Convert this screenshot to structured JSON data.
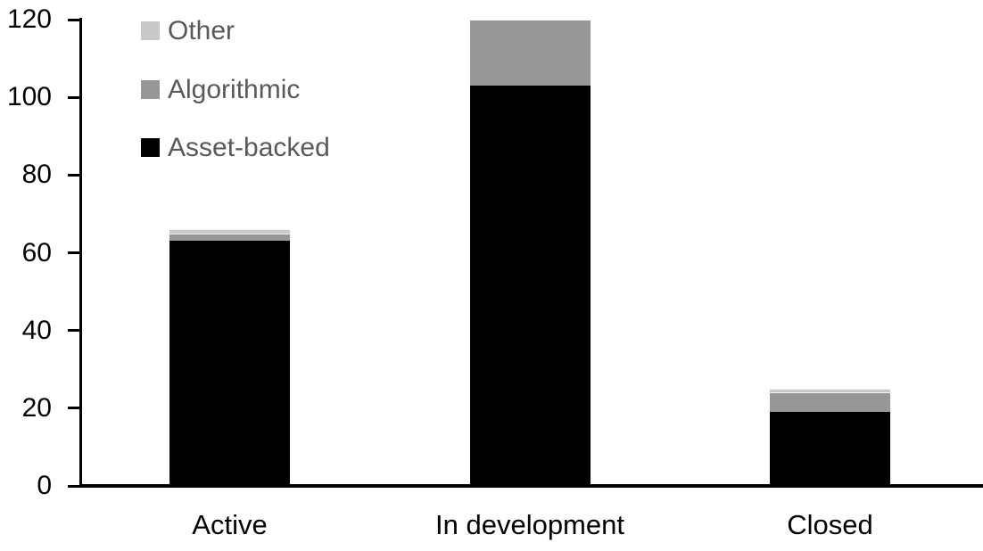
{
  "figure": {
    "kind": "static stacked bar chart",
    "background": "#ffffff"
  },
  "chart_data": {
    "type": "bar",
    "stacked": true,
    "title": "",
    "xlabel": "",
    "ylabel": "",
    "categories": [
      "Active",
      "In development",
      "Closed"
    ],
    "series": [
      {
        "name": "Asset-backed",
        "color": "#000000",
        "values": [
          63,
          103,
          19
        ]
      },
      {
        "name": "Algorithmic",
        "color": "#979797",
        "values": [
          2,
          17,
          5
        ]
      },
      {
        "name": "Other",
        "color": "#c9c9c9",
        "values": [
          1,
          0,
          1
        ]
      }
    ],
    "stack_totals": [
      66,
      120,
      25
    ],
    "yticks": [
      0,
      20,
      40,
      60,
      80,
      100,
      120
    ],
    "ylim": [
      0,
      120
    ],
    "grid": false,
    "axis_color": "#000000",
    "tick_label_color": "#000000",
    "legend": {
      "position": "top-left",
      "order": [
        "Other",
        "Algorithmic",
        "Asset-backed"
      ],
      "text_color": "#595959"
    }
  }
}
